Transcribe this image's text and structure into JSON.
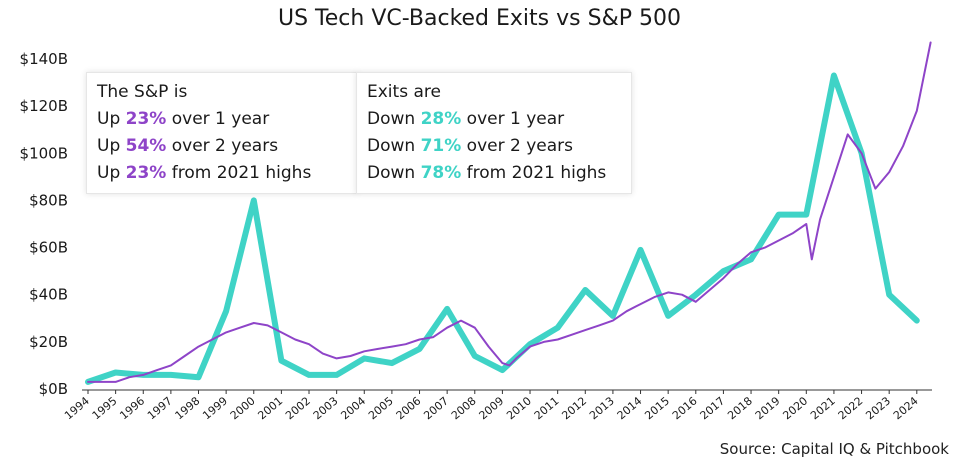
{
  "chart_data": {
    "type": "line",
    "title": "US Tech VC-Backed Exits vs S&P 500",
    "ylabel": "",
    "xlabel": "",
    "ylim": [
      0,
      140
    ],
    "y_ticks": [
      "$0B",
      "$20B",
      "$40B",
      "$60B",
      "$80B",
      "$100B",
      "$120B",
      "$140B"
    ],
    "x_ticks": [
      "1994",
      "1995",
      "1996",
      "1997",
      "1998",
      "1999",
      "2000",
      "2001",
      "2002",
      "2003",
      "2004",
      "2005",
      "2006",
      "2007",
      "2008",
      "2009",
      "2010",
      "2011",
      "2012",
      "2013",
      "2014",
      "2015",
      "2016",
      "2017",
      "2018",
      "2019",
      "2020",
      "2021",
      "2022",
      "2023",
      "2024"
    ],
    "series": [
      {
        "key": "exits",
        "color": "#3fd3c6",
        "x": [
          1994,
          1995,
          1996,
          1997,
          1998,
          1999,
          2000,
          2001,
          2002,
          2003,
          2004,
          2005,
          2006,
          2007,
          2008,
          2009,
          2010,
          2011,
          2012,
          2013,
          2014,
          2015,
          2016,
          2017,
          2018,
          2019,
          2020,
          2021,
          2022,
          2023,
          2024
        ],
        "values": [
          3,
          7,
          6,
          6,
          5,
          33,
          80,
          12,
          6,
          6,
          13,
          11,
          17,
          34,
          14,
          8,
          19,
          26,
          42,
          31,
          59,
          31,
          40,
          50,
          55,
          74,
          74,
          133,
          100,
          40,
          29
        ]
      },
      {
        "key": "sp500",
        "color": "#8e44c8",
        "x": [
          1994,
          1994.5,
          1995,
          1995.5,
          1996,
          1996.5,
          1997,
          1997.5,
          1998,
          1998.5,
          1999,
          1999.5,
          2000,
          2000.5,
          2001,
          2001.5,
          2002,
          2002.5,
          2003,
          2003.5,
          2004,
          2004.5,
          2005,
          2005.5,
          2006,
          2006.5,
          2007,
          2007.5,
          2008,
          2008.5,
          2009,
          2009.25,
          2009.5,
          2010,
          2010.5,
          2011,
          2011.5,
          2012,
          2012.5,
          2013,
          2013.5,
          2014,
          2014.5,
          2015,
          2015.5,
          2016,
          2016.5,
          2017,
          2017.5,
          2018,
          2018.5,
          2019,
          2019.5,
          2020,
          2020.2,
          2020.5,
          2021,
          2021.5,
          2022,
          2022.5,
          2023,
          2023.5,
          2024,
          2024.5
        ],
        "values": [
          3,
          3,
          3,
          5,
          6,
          8,
          10,
          14,
          18,
          21,
          24,
          26,
          28,
          27,
          24,
          21,
          19,
          15,
          13,
          14,
          16,
          17,
          18,
          19,
          21,
          22,
          26,
          29,
          26,
          18,
          11,
          10,
          13,
          18,
          20,
          21,
          23,
          25,
          27,
          29,
          33,
          36,
          39,
          41,
          40,
          37,
          42,
          47,
          53,
          58,
          60,
          63,
          66,
          70,
          55,
          72,
          90,
          108,
          100,
          85,
          92,
          103,
          118,
          147
        ]
      }
    ]
  },
  "sp_box": {
    "header": "The S&P is",
    "lines": [
      {
        "pre": "Up ",
        "pct": "23%",
        "post": " over 1 year"
      },
      {
        "pre": "Up ",
        "pct": "54%",
        "post": " over 2 years"
      },
      {
        "pre": "Up ",
        "pct": "23%",
        "post": " from 2021 highs"
      }
    ]
  },
  "exits_box": {
    "header": "Exits are",
    "lines": [
      {
        "pre": "Down ",
        "pct": "28%",
        "post": " over 1 year"
      },
      {
        "pre": "Down ",
        "pct": "71%",
        "post": " over 2 years"
      },
      {
        "pre": "Down ",
        "pct": "78%",
        "post": " from 2021 highs"
      }
    ]
  },
  "source": "Source: Capital IQ & Pitchbook"
}
